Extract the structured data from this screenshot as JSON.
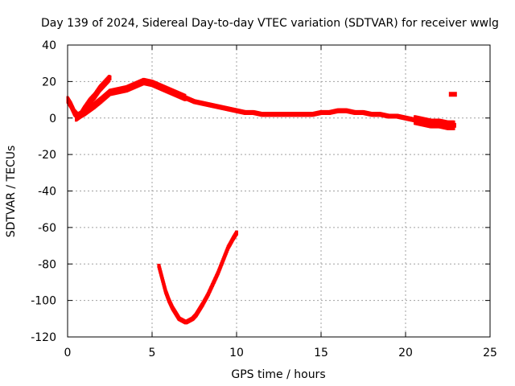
{
  "chart_data": {
    "type": "scatter",
    "title": "Day 139 of 2024, Sidereal Day-to-day VTEC variation (SDTVAR) for receiver wwlg",
    "xlabel": "GPS time / hours",
    "ylabel": "SDTVAR / TECUs",
    "xlim": [
      0,
      25
    ],
    "ylim": [
      -120,
      40
    ],
    "xticks": [
      0,
      5,
      10,
      15,
      20,
      25
    ],
    "yticks": [
      -120,
      -100,
      -80,
      -60,
      -40,
      -20,
      0,
      20,
      40
    ],
    "grid": true,
    "color": "#ff0000",
    "series": [
      {
        "name": "main-band",
        "x": [
          0.0,
          0.2,
          0.4,
          0.6,
          0.8,
          1.0,
          1.3,
          1.6,
          2.0,
          2.5,
          3.0,
          3.5,
          4.0,
          4.5,
          5.0,
          5.5,
          6.0,
          6.5,
          7.0,
          7.5,
          8.0,
          8.5,
          9.0,
          9.5,
          10.0,
          10.5,
          11.0,
          11.5,
          12.0,
          12.5,
          13.0,
          13.5,
          14.0,
          14.5,
          15.0,
          15.5,
          16.0,
          16.5,
          17.0,
          17.5,
          18.0,
          18.5,
          19.0,
          19.5,
          20.0,
          20.5,
          21.0,
          21.5,
          22.0,
          22.5,
          22.9
        ],
        "y": [
          10,
          7,
          3,
          1,
          2,
          3,
          5,
          7,
          10,
          14,
          15,
          16,
          18,
          20,
          19,
          17,
          15,
          13,
          11,
          9,
          8,
          7,
          6,
          5,
          4,
          3,
          3,
          2,
          2,
          2,
          2,
          2,
          2,
          2,
          3,
          3,
          4,
          4,
          3,
          3,
          2,
          2,
          1,
          1,
          0,
          -1,
          -2,
          -3,
          -3,
          -4,
          -4
        ]
      },
      {
        "name": "upper-branch",
        "x": [
          0.5,
          0.8,
          1.0,
          1.3,
          1.6,
          1.9,
          2.2,
          2.5
        ],
        "y": [
          0,
          2,
          5,
          9,
          12,
          16,
          19,
          22
        ]
      },
      {
        "name": "isolated-point",
        "x": [
          22.8
        ],
        "y": [
          13
        ]
      },
      {
        "name": "lower-arc",
        "x": [
          5.4,
          5.6,
          5.8,
          6.0,
          6.2,
          6.4,
          6.6,
          6.8,
          7.0,
          7.2,
          7.4,
          7.6,
          7.8,
          8.0,
          8.3,
          8.6,
          8.9,
          9.2,
          9.5,
          9.8,
          10.0
        ],
        "y": [
          -81,
          -88,
          -95,
          -100,
          -104,
          -107,
          -110,
          -111,
          -112,
          -111,
          -110,
          -108,
          -105,
          -102,
          -97,
          -91,
          -85,
          -78,
          -71,
          -66,
          -63
        ]
      }
    ]
  }
}
